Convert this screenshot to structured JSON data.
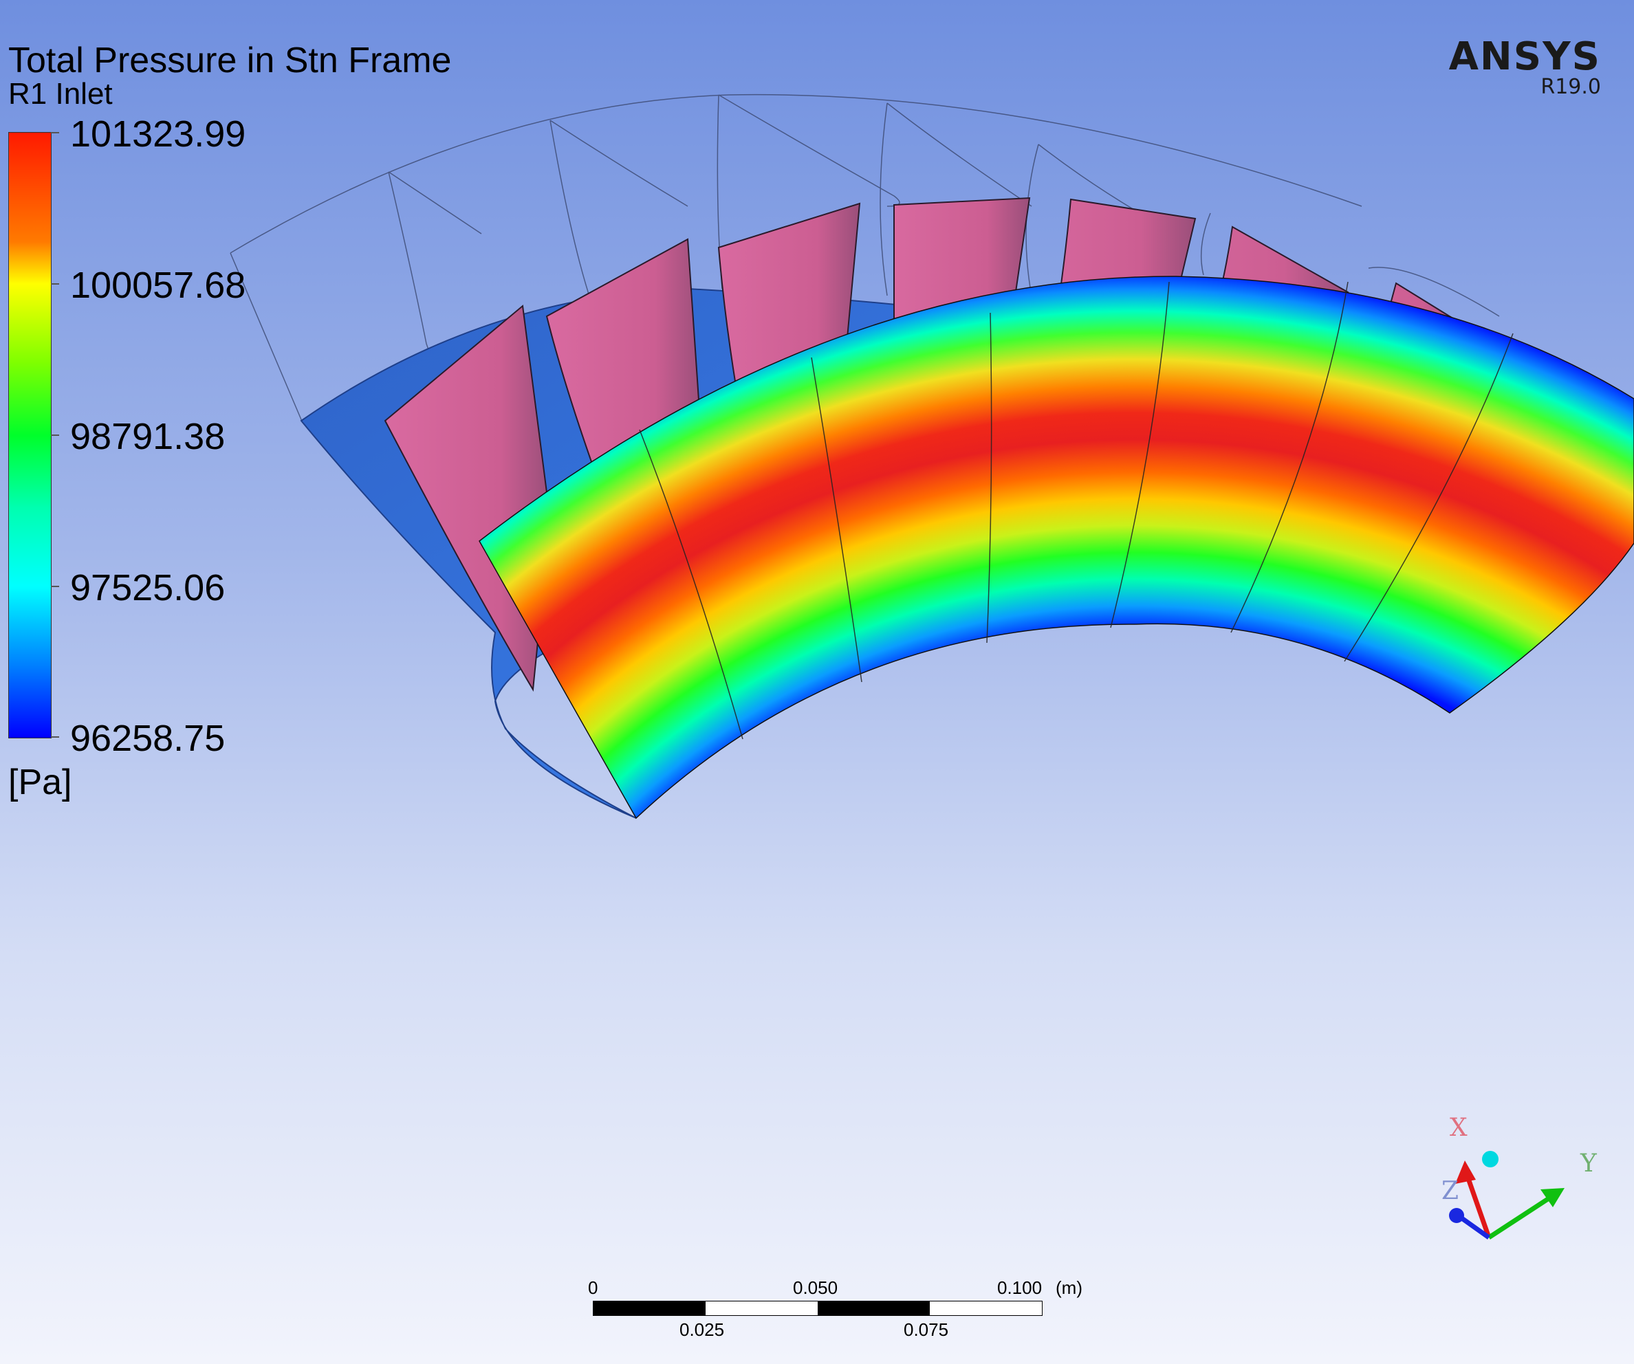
{
  "legend": {
    "title": "Total Pressure in Stn Frame",
    "location": "R1 Inlet",
    "ticks": [
      "101323.99",
      "100057.68",
      "98791.38",
      "97525.06",
      "96258.75"
    ],
    "unit": "[Pa]"
  },
  "logo": {
    "brand": "ANSYS",
    "version": "R19.0"
  },
  "scale_bar": {
    "top_labels": [
      "0",
      "0.050",
      "0.100"
    ],
    "unit": "(m)",
    "bottom_labels": [
      "0.025",
      "0.075"
    ]
  },
  "triad": {
    "x": "X",
    "y": "Y",
    "z": "Z"
  },
  "colors": {
    "high": "#ff1a00",
    "mid": "#00ff2a",
    "low": "#0000ff",
    "blade": "#d05f96",
    "hub": "#2f73e6"
  }
}
